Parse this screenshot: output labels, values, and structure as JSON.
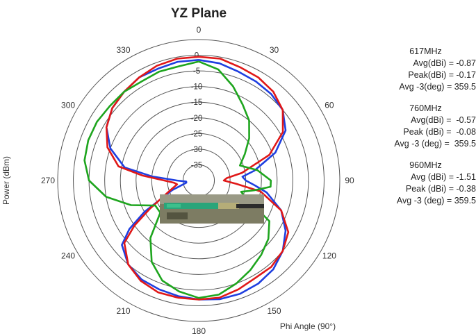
{
  "chart_data": {
    "type": "polar-line",
    "title": "YZ Plane",
    "radial_axis_label": "Power (dBm)",
    "angular_axis_label": "Phi Angle (90°)",
    "radial_ticks": [
      "0",
      "-5",
      "-10",
      "-15",
      "-20",
      "-25",
      "-30",
      "-35"
    ],
    "radial_tick_values": [
      0,
      -5,
      -10,
      -15,
      -20,
      -25,
      -30,
      -35
    ],
    "radial_range": [
      -40,
      5
    ],
    "angle_ticks": [
      "0",
      "30",
      "60",
      "90",
      "120",
      "150",
      "180",
      "210",
      "240",
      "270",
      "300",
      "330"
    ],
    "angle_tick_values": [
      0,
      30,
      60,
      90,
      120,
      150,
      180,
      210,
      240,
      270,
      300,
      330
    ],
    "grid": true,
    "series": [
      {
        "name": "617MHz",
        "color": "#1f3fe0",
        "angles": [
          0,
          10,
          20,
          30,
          40,
          50,
          60,
          70,
          80,
          85,
          90,
          95,
          100,
          110,
          120,
          130,
          140,
          150,
          160,
          170,
          180,
          190,
          200,
          210,
          220,
          230,
          235,
          240,
          250,
          260,
          265,
          270,
          275,
          280,
          290,
          300,
          310,
          320,
          330,
          340,
          350,
          360
        ],
        "values": [
          -1.5,
          -2,
          -3,
          -3.5,
          -4,
          -5,
          -8,
          -14,
          -22,
          -26,
          -25,
          -22,
          -18,
          -12,
          -8,
          -5,
          -3,
          -2,
          -1.5,
          -1.5,
          -2,
          -2.5,
          -3,
          -3.5,
          -5,
          -8,
          -13,
          -20,
          -31,
          -36,
          -36,
          -33,
          -25,
          -16,
          -10,
          -6,
          -4,
          -3,
          -2,
          -2,
          -1.5,
          -1.5
        ]
      },
      {
        "name": "760MHz",
        "color": "#e01818",
        "angles": [
          0,
          10,
          20,
          30,
          40,
          50,
          60,
          70,
          80,
          85,
          90,
          95,
          100,
          110,
          120,
          130,
          140,
          150,
          160,
          170,
          180,
          190,
          200,
          210,
          220,
          230,
          235,
          240,
          250,
          260,
          265,
          270,
          275,
          280,
          290,
          300,
          310,
          320,
          330,
          340,
          350,
          360
        ],
        "values": [
          -0.5,
          -0.5,
          -1.5,
          -2,
          -3,
          -5,
          -9,
          -16,
          -26,
          -31,
          -32,
          -28,
          -20,
          -12,
          -7,
          -5,
          -4,
          -4,
          -3,
          -2,
          -2,
          -2,
          -2,
          -3,
          -5,
          -9,
          -15,
          -22,
          -30,
          -33,
          -32,
          -29,
          -22,
          -14,
          -9,
          -6,
          -4,
          -3,
          -2,
          -1,
          -0.5,
          -0.5
        ]
      },
      {
        "name": "960MHz",
        "color": "#1ea51e",
        "angles": [
          0,
          10,
          20,
          30,
          40,
          50,
          60,
          70,
          80,
          90,
          95,
          100,
          105,
          110,
          120,
          130,
          140,
          150,
          160,
          170,
          180,
          190,
          200,
          210,
          220,
          230,
          240,
          250,
          260,
          270,
          280,
          290,
          300,
          310,
          320,
          330,
          340,
          350,
          360
        ],
        "values": [
          -2,
          -4,
          -8,
          -12,
          -15,
          -19,
          -23,
          -26,
          -21,
          -17,
          -17,
          -22,
          -26,
          -24,
          -14,
          -11,
          -9,
          -7,
          -5,
          -3,
          -2.5,
          -4,
          -6,
          -10,
          -16,
          -24,
          -24,
          -17,
          -10,
          -5,
          -3,
          -2.5,
          -2.5,
          -3,
          -3,
          -3.5,
          -3,
          -3,
          -2
        ]
      }
    ],
    "annotations": [
      {
        "header": "617MHz",
        "lines": [
          [
            "Avg(dBi) = ",
            "-0.87"
          ],
          [
            "Peak(dBi) = ",
            "-0.17"
          ],
          [
            "Avg -3(deg) = ",
            "359.5"
          ]
        ]
      },
      {
        "header": "760MHz",
        "lines": [
          [
            "Avg(dBi) = ",
            " -0.57"
          ],
          [
            "Peak (dBi) = ",
            " -0.08"
          ],
          [
            "Avg -3 (deg) = ",
            " 359.5"
          ]
        ]
      },
      {
        "header": "960MHz",
        "lines": [
          [
            "Avg (dBi) = ",
            "-1.51"
          ],
          [
            "Peak (dBi) = ",
            "-0.38"
          ],
          [
            "Avg -3 (deg) = ",
            "359.5"
          ]
        ]
      }
    ],
    "inset_image": "antenna-photo"
  }
}
